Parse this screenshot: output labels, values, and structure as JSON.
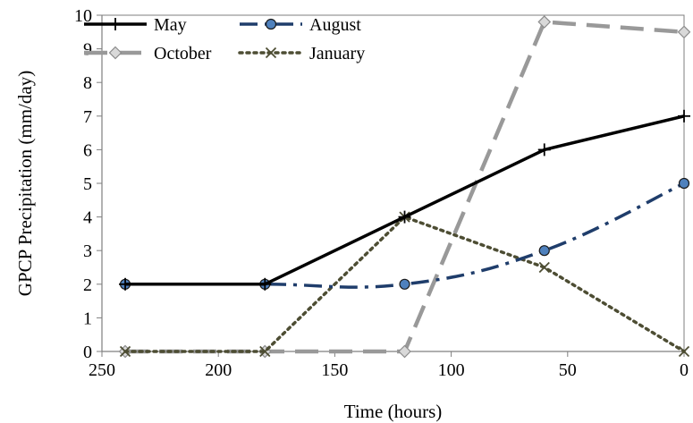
{
  "chart_data": {
    "type": "line",
    "xlabel": "Time (hours)",
    "ylabel": "GPCP Precipitation (mm/day)",
    "xlim": [
      250,
      0
    ],
    "ylim": [
      0,
      10
    ],
    "x_reversed": true,
    "xticks": [
      250,
      200,
      150,
      100,
      50,
      0
    ],
    "yticks": [
      0,
      1,
      2,
      3,
      4,
      5,
      6,
      7,
      8,
      9,
      10
    ],
    "grid": false,
    "legend_position": "top-left",
    "series": [
      {
        "name": "May",
        "color": "#000000",
        "line_style": "solid",
        "marker": "plus",
        "smooth": false,
        "x": [
          240,
          180,
          120,
          60,
          0
        ],
        "y": [
          2,
          2,
          4,
          6,
          7
        ]
      },
      {
        "name": "August",
        "color": "#1f3d6b",
        "line_style": "dash-dot",
        "marker": "circle",
        "smooth": true,
        "x": [
          240,
          180,
          120,
          60,
          0
        ],
        "y": [
          2,
          2,
          2,
          3,
          5
        ]
      },
      {
        "name": "October",
        "color": "#999999",
        "line_style": "dashed",
        "marker": "diamond",
        "smooth": false,
        "x": [
          240,
          180,
          120,
          60,
          0
        ],
        "y": [
          0,
          0,
          0,
          9.8,
          9.5
        ]
      },
      {
        "name": "January",
        "color": "#4d4d33",
        "line_style": "dotted",
        "marker": "x",
        "smooth": false,
        "x": [
          240,
          180,
          120,
          60,
          0
        ],
        "y": [
          0,
          0,
          4,
          2.5,
          0
        ]
      }
    ]
  }
}
